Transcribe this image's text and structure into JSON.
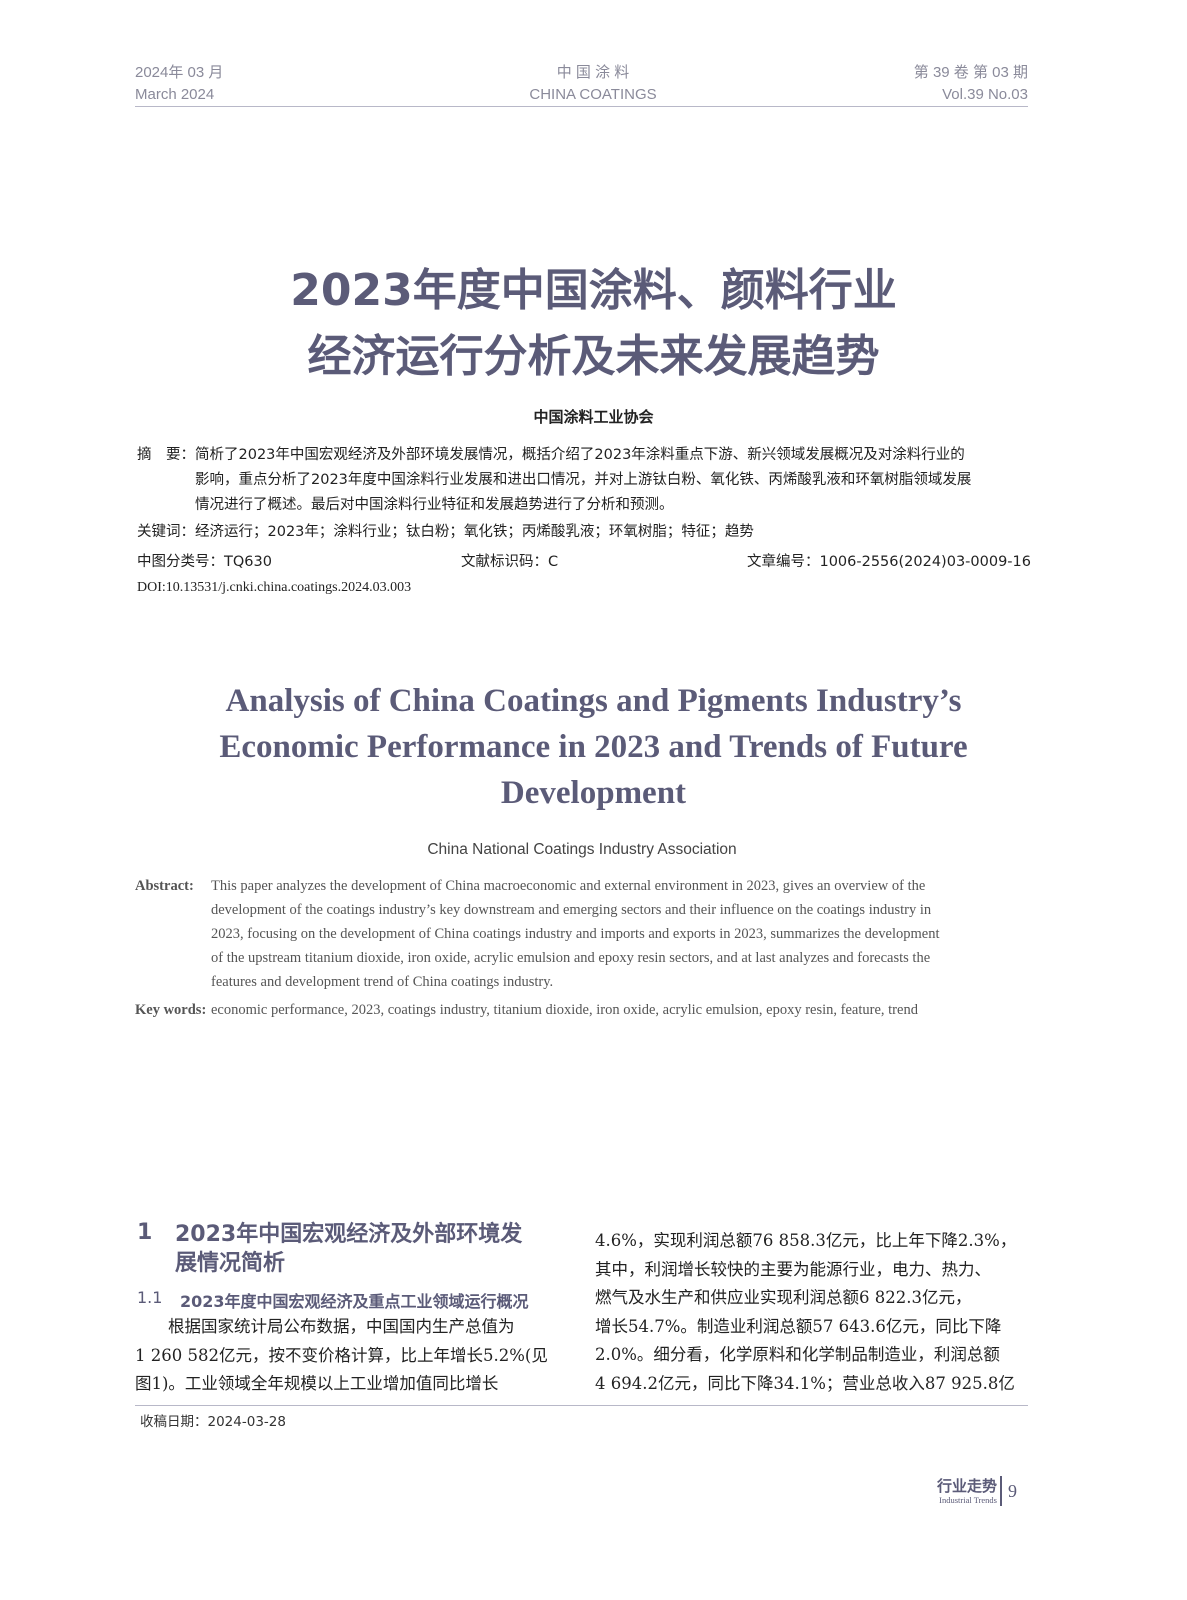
{
  "header": {
    "date_cn": "2024年 03 月",
    "date_en": "March 2024",
    "journal_cn": "中 国 涂 料",
    "journal_en": "CHINA COATINGS",
    "volume_cn": "第 39 卷  第 03 期",
    "volume_en": "Vol.39  No.03"
  },
  "title_cn": [
    "2023年度中国涂料、颜料行业",
    "经济运行分析及未来发展趋势"
  ],
  "author_cn": "中国涂料工业协会",
  "abstract_cn": {
    "label": "摘　要：",
    "lines": [
      "简析了2023年中国宏观经济及外部环境发展情况，概括介绍了2023年涂料重点下游、新兴领域发展概况及对涂料行业的",
      "影响，重点分析了2023年度中国涂料行业发展和进出口情况，并对上游钛白粉、氧化铁、丙烯酸乳液和环氧树脂领域发展",
      "情况进行了概述。最后对中国涂料行业特征和发展趋势进行了分析和预测。"
    ]
  },
  "keywords_cn": "关键词：经济运行；2023年；涂料行业；钛白粉；氧化铁；丙烯酸乳液；环氧树脂；特征；趋势",
  "classification": "中图分类号：TQ630",
  "doc_code": "文献标识码：C",
  "article_no": "文章编号：1006-2556(2024)03-0009-16",
  "doi": "DOI:10.13531/j.cnki.china.coatings.2024.03.003",
  "title_en": [
    "Analysis of China Coatings and Pigments Industry’s",
    "Economic Performance in 2023 and Trends of Future",
    "Development"
  ],
  "author_en": "China National Coatings Industry Association",
  "abstract_en": {
    "label": "Abstract:",
    "lines": [
      "This paper analyzes the development of China macroeconomic and external environment in 2023, gives an overview of the",
      "development of the coatings industry’s key downstream and emerging sectors and their influence on the coatings industry in",
      "2023, focusing on the development of China coatings industry and imports and exports in 2023, summarizes the development",
      "of the upstream titanium dioxide, iron oxide, acrylic emulsion and epoxy resin sectors, and at last analyzes and forecasts the",
      "features and development trend of China coatings industry."
    ]
  },
  "keywords_en": {
    "label": "Key words:",
    "text": "economic performance, 2023, coatings industry, titanium dioxide, iron oxide, acrylic emulsion, epoxy resin, feature, trend"
  },
  "section1": {
    "number": "1",
    "title_lines": [
      "2023年中国宏观经济及外部环境发",
      "展情况简析"
    ]
  },
  "section1_1": {
    "number": "1.1",
    "title": "2023年度中国宏观经济及重点工业领域运行概况"
  },
  "left_col": [
    "　　根据国家统计局公布数据，中国国内生产总值为",
    "1 260 582亿元，按不变价格计算，比上年增长5.2%(见",
    "图1)。工业领域全年规模以上工业增加值同比增长"
  ],
  "right_col": [
    "4.6%，实现利润总额76 858.3亿元，比上年下降2.3%，",
    "其中，利润增长较快的主要为能源行业，电力、热力、",
    "燃气及水生产和供应业实现利润总额6 822.3亿元，",
    "增长54.7%。制造业利润总额57 643.6亿元，同比下降",
    "2.0%。细分看，化学原料和化学制品制造业，利润总额",
    "4 694.2亿元，同比下降34.1%；营业总收入87 925.8亿"
  ],
  "received": "收稿日期：2024-03-28",
  "footer": {
    "section_cn": "行业走势",
    "section_en": "Industrial Trends",
    "page": "9"
  }
}
